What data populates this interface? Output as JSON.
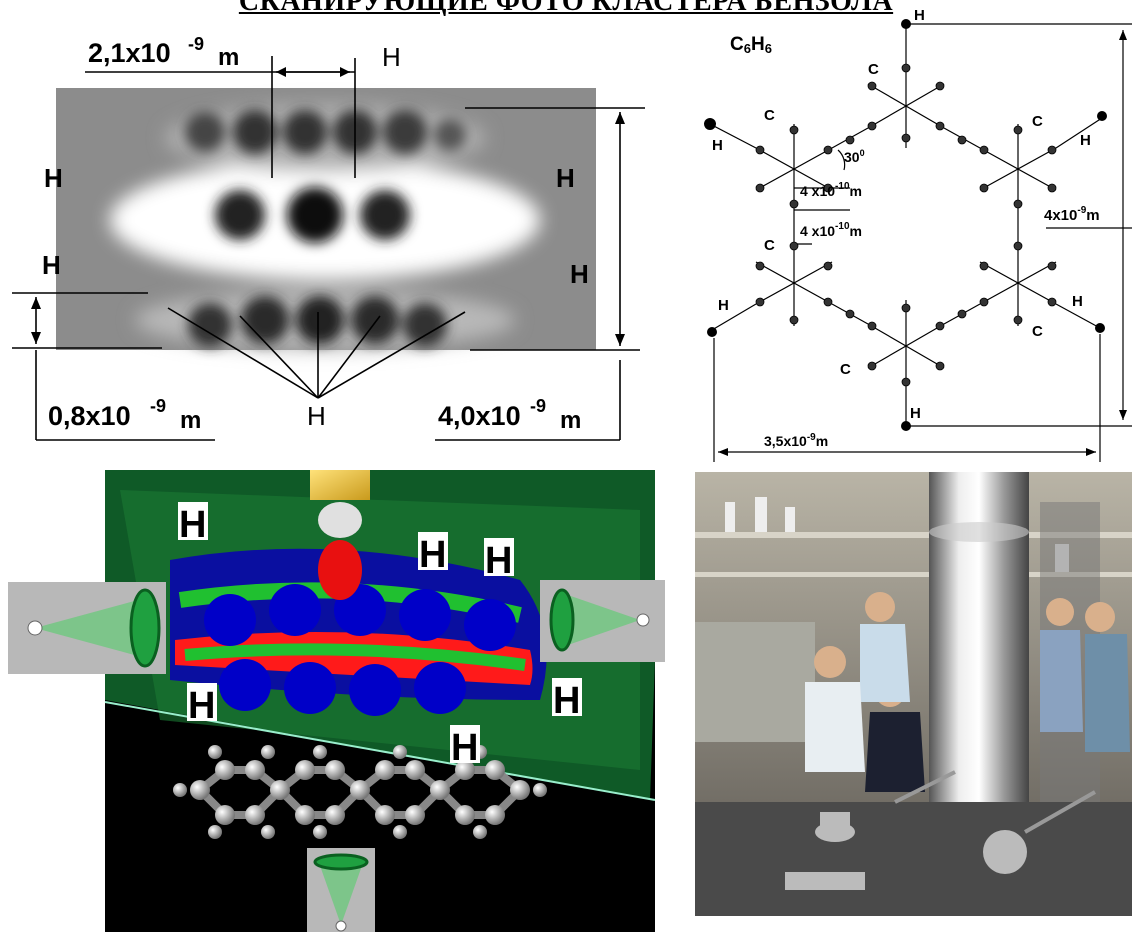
{
  "header": {
    "title": "СКАНИРУЮЩИЕ ФОТО КЛАСТЕРА БЕНЗОЛА"
  },
  "panel_afm": {
    "dim_top": "2,1x10",
    "dim_top_exp": "-9",
    "dim_top_unit": "m",
    "dim_left": "0,8x10",
    "dim_left_exp": "-9",
    "dim_left_unit": "m",
    "dim_right": "4,0x10",
    "dim_right_exp": "-9",
    "dim_right_unit": "m",
    "h": "H"
  },
  "panel_schema": {
    "formula": "C",
    "formula_sub1": "6",
    "formula_h": "H",
    "formula_sub2": "6",
    "c": "C",
    "h": "H",
    "angle": "30",
    "angle_deg": "0",
    "bond1": "4 x10",
    "bond1_exp": "-10",
    "bond1_unit": "m",
    "bond2": "4 x10",
    "bond2_exp": "-10",
    "bond2_unit": "m",
    "height": "4x10",
    "height_exp": "-9",
    "height_unit": "m",
    "width": "3,5x10",
    "width_exp": "-9",
    "width_unit": "m"
  },
  "panel_3d": {
    "h": "H"
  },
  "panel_lab": {}
}
